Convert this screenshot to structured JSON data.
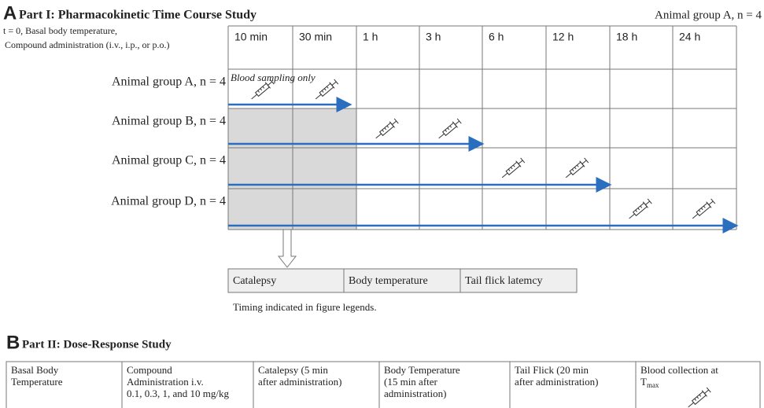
{
  "part_a": {
    "letter": "A",
    "title": "Part I: Pharmacokinetic Time Course Study",
    "corner_note": "Animal group A, n = 4",
    "t0_note": [
      "t = 0, Basal body temperature,",
      "Compound administration (i.v., i.p., or p.o.)"
    ],
    "time_columns": [
      "10 min",
      "30 min",
      "1 h",
      "3 h",
      "6 h",
      "12 h",
      "18 h",
      "24 h"
    ],
    "groups": [
      {
        "label": "Animal group A, n = 4",
        "note": "Blood sampling only"
      },
      {
        "label": "Animal group B, n = 4"
      },
      {
        "label": "Animal group C, n = 4"
      },
      {
        "label": "Animal group D, n = 4"
      }
    ],
    "procedures": [
      "Catalepsy",
      "Body  temperature",
      "Tail flick latemcy"
    ],
    "footnote": "Timing indicated in figure legends."
  },
  "part_b": {
    "letter": "B",
    "title": "Part II: Dose-Response Study",
    "columns": [
      {
        "lines": [
          "Basal Body",
          "Temperature"
        ]
      },
      {
        "lines": [
          "Compound",
          "Administration i.v.",
          "0.1, 0.3, 1, and 10 mg/kg"
        ]
      },
      {
        "lines": [
          "Catalepsy  (5 min",
          "after administration)"
        ]
      },
      {
        "lines": [
          "Body Temperature",
          "(15 min after",
          "administration)"
        ]
      },
      {
        "lines": [
          "Tail Flick (20 min",
          "after administration)"
        ]
      },
      {
        "lines": [
          "Blood collection at"
        ],
        "symbol": "T",
        "subscript": "max"
      }
    ]
  }
}
